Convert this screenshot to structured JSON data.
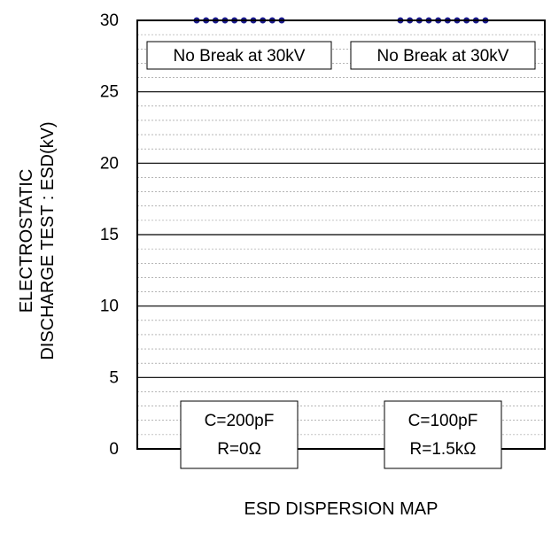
{
  "chart_data": {
    "type": "scatter",
    "title": "",
    "xlabel": "ESD DISPERSION MAP",
    "ylabel_lines": [
      "ELECTROSTATIC",
      "DISCHARGE TEST : ESD(kV)"
    ],
    "ylim": [
      0,
      30
    ],
    "y_ticks": [
      "0",
      "5",
      "10",
      "15",
      "20",
      "25",
      "30"
    ],
    "major_step": 5,
    "minor_step": 1,
    "grid": true,
    "categories": [
      {
        "line1": "C=200pF",
        "line2": "R=0Ω"
      },
      {
        "line1": "C=100pF",
        "line2": "R=1.5kΩ"
      }
    ],
    "series": [
      {
        "values": [
          30,
          30,
          30,
          30,
          30,
          30,
          30,
          30,
          30,
          30
        ]
      },
      {
        "values": [
          30,
          30,
          30,
          30,
          30,
          30,
          30,
          30,
          30,
          30
        ]
      }
    ],
    "annotations": [
      "No Break at 30kV",
      "No Break at 30kV"
    ],
    "marker_color": "#1a1a8c"
  }
}
